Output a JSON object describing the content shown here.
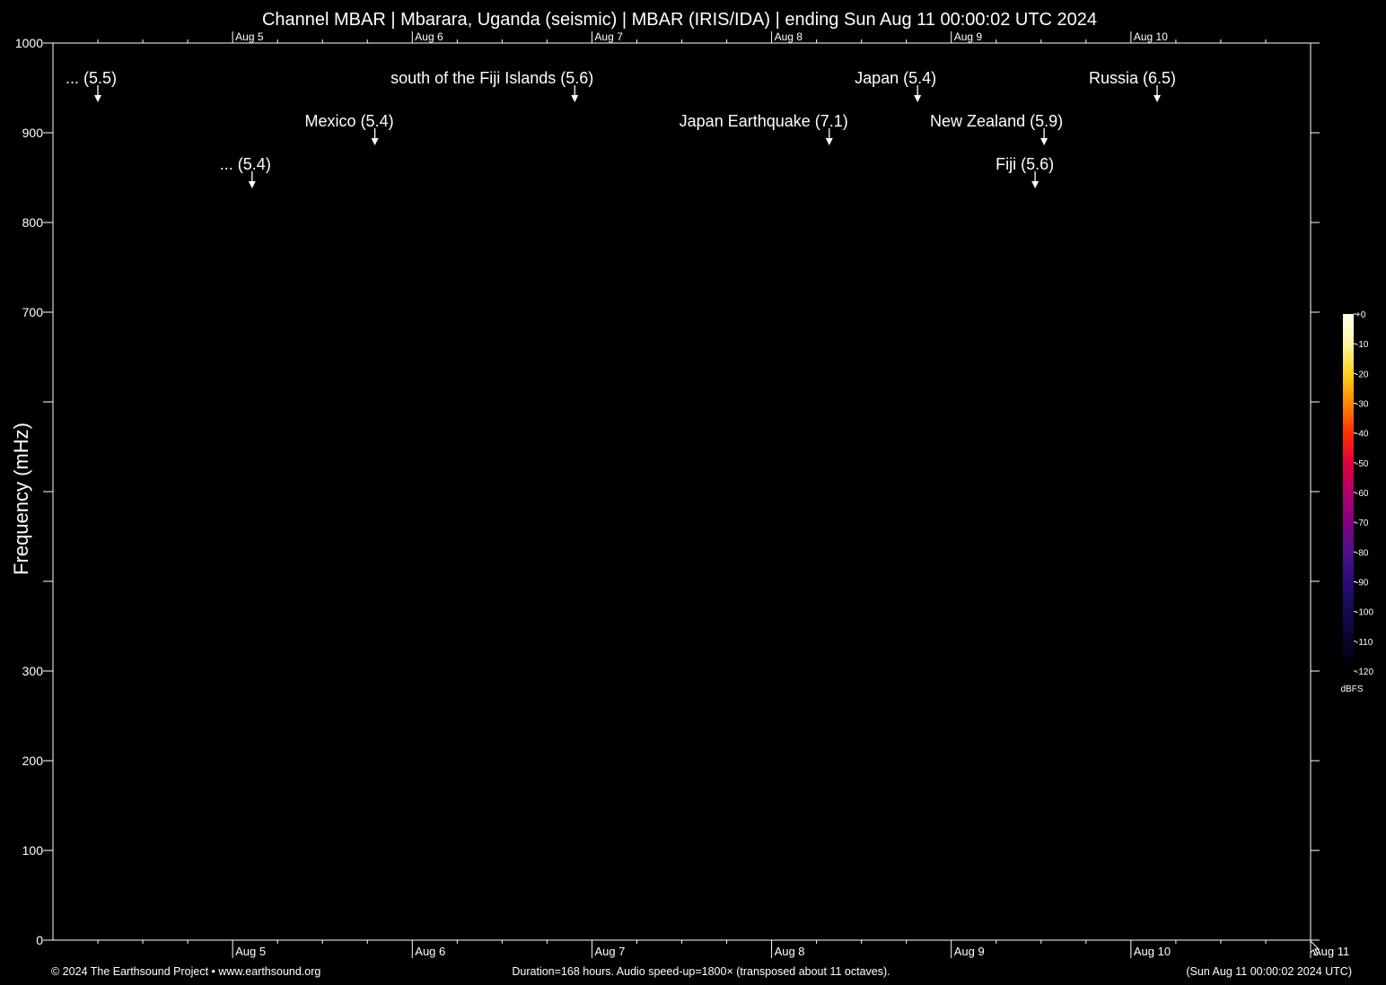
{
  "chart_data": {
    "type": "heatmap",
    "title": "Channel MBAR | Mbarara, Uganda (seismic) | MBAR (IRIS/IDA) | ending Sun Aug 11 00:00:02 UTC 2024",
    "ylabel": "Frequency (mHz)",
    "ylim": [
      0,
      1000
    ],
    "y_ticks": [
      0,
      100,
      200,
      300,
      400,
      500,
      600,
      700,
      800,
      900,
      1000
    ],
    "y_tick_labels": [
      "0",
      "100",
      "200",
      "300",
      "",
      "",
      "",
      "700",
      "800",
      "900",
      "1000"
    ],
    "x_range_hours": [
      0,
      168
    ],
    "x_ticks": [
      {
        "hour": 24,
        "label": "Aug 5"
      },
      {
        "hour": 48,
        "label": "Aug 6"
      },
      {
        "hour": 72,
        "label": "Aug 7"
      },
      {
        "hour": 96,
        "label": "Aug 8"
      },
      {
        "hour": 120,
        "label": "Aug 9"
      },
      {
        "hour": 144,
        "label": "Aug 10"
      },
      {
        "hour": 168,
        "label": "Aug 11"
      }
    ],
    "x_top_tick_labels": [
      "Aug 5",
      "Aug 6",
      "Aug 7",
      "Aug 8",
      "Aug 9",
      "Aug 10"
    ],
    "events": [
      {
        "label": "... (5.5)",
        "hour": 6,
        "row": 0
      },
      {
        "label": "south of the Fiji Islands (5.6)",
        "hour": 69.7,
        "row": 0
      },
      {
        "label": "Japan (5.4)",
        "hour": 115.5,
        "row": 0
      },
      {
        "label": "Russia (6.5)",
        "hour": 147.5,
        "row": 0
      },
      {
        "label": "Mexico (5.4)",
        "hour": 43,
        "row": 1
      },
      {
        "label": "Japan Earthquake (7.1)",
        "hour": 103.7,
        "row": 1
      },
      {
        "label": "New Zealand (5.9)",
        "hour": 132.4,
        "row": 1
      },
      {
        "label": "... (5.4)",
        "hour": 26.6,
        "row": 2
      },
      {
        "label": "Fiji (5.6)",
        "hour": 131.2,
        "row": 2
      }
    ],
    "colorbar": {
      "unit": "dBFS",
      "range": [
        -120,
        0
      ],
      "ticks": [
        "+0",
        "-10",
        "-20",
        "-30",
        "-40",
        "-50",
        "-60",
        "-70",
        "-80",
        "-90",
        "-100",
        "-110",
        "-120"
      ],
      "colors": [
        "#fffff0",
        "#fff7a0",
        "#ffd21e",
        "#ff8a00",
        "#ff3000",
        "#e0003c",
        "#b0006a",
        "#800080",
        "#50108a",
        "#2a0c78",
        "#140a50",
        "#06052a",
        "#000000"
      ]
    },
    "background_color": "#000000"
  },
  "footer": {
    "left": "© 2024 The Earthsound Project • www.earthsound.org",
    "center": "Duration=168 hours. Audio speed-up=1800× (transposed about 11 octaves).",
    "right": "(Sun Aug 11 00:00:02 2024 UTC)"
  }
}
